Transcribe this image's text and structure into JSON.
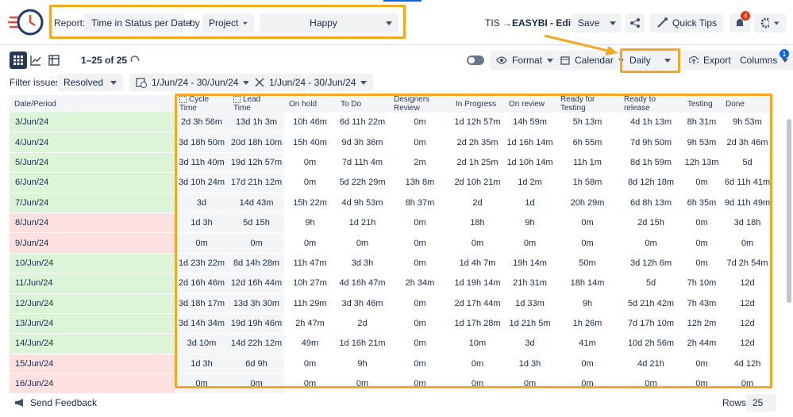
{
  "header": {
    "report_label": "Report:",
    "report_value": "Time in Status per Date",
    "by": "by",
    "group_value": "Project",
    "filter_value": "Happy",
    "title_prefix": "TIS → ",
    "title_main": "EASYBI - Edited",
    "save": "Save",
    "quick_tips": "Quick Tips",
    "notifications": "4"
  },
  "toolbar": {
    "range": "1–25 of 25",
    "format": "Format",
    "calendar": "Calendar",
    "period": "Daily",
    "export": "Export",
    "columns": "Columns",
    "columns_badge": "1"
  },
  "filters": {
    "label": "Filter issues:",
    "status": "Resolved",
    "date_range_1": "1/Jun/24 - 30/Jun/24",
    "date_range_2": "1/Jun/24 - 30/Jun/24"
  },
  "table": {
    "columns": [
      "Date/Period",
      "Cycle Time",
      "Lead Time",
      "On hold",
      "To Do",
      "Designers Review",
      "In Progress",
      "On review",
      "Ready for Testing",
      "Ready to release",
      "Testing",
      "Done"
    ],
    "rows": [
      {
        "date": "3/Jun/24",
        "color": "#dcf5d9",
        "values": [
          "2d 3h 56m",
          "13d 1h 3m",
          "10h 46m",
          "6d 11h 22m",
          "0m",
          "1d 12h 57m",
          "14h 59m",
          "5h 13m",
          "4d 1h 13m",
          "8h 31m",
          "9h 53m"
        ]
      },
      {
        "date": "4/Jun/24",
        "color": "#dcf5d9",
        "values": [
          "3d 18h 50m",
          "20d 18h 10m",
          "15h 40m",
          "9d 3h 36m",
          "0m",
          "2d 2h 35m",
          "1d 16h 14m",
          "6h 55m",
          "7d 9h 50m",
          "9h 53m",
          "2d 3h 46m"
        ]
      },
      {
        "date": "5/Jun/24",
        "color": "#dcf5d9",
        "values": [
          "3d 11h 40m",
          "19d 12h 57m",
          "0m",
          "7d 11h 4m",
          "2m",
          "2d 1h 25m",
          "1d 10h 14m",
          "11h 1m",
          "8d 1h 59m",
          "12h 13m",
          "5d"
        ]
      },
      {
        "date": "6/Jun/24",
        "color": "#dcf5d9",
        "values": [
          "3d 10h 24m",
          "17d 21h 12m",
          "0m",
          "5d 22h 29m",
          "13h 8m",
          "2d 10h 21m",
          "1d 2m",
          "1h 58m",
          "8d 12h 18m",
          "0m",
          "6d 11h 41m"
        ]
      },
      {
        "date": "7/Jun/24",
        "color": "#dcf5d9",
        "values": [
          "3d",
          "14d 43m",
          "15h 22m",
          "4d 9h 53m",
          "8h 37m",
          "2d",
          "1d",
          "20h 29m",
          "6d 8h 13m",
          "6h 35m",
          "9d 11h 49m"
        ]
      },
      {
        "date": "8/Jun/24",
        "color": "#fde1e1",
        "values": [
          "1d 3h",
          "5d 15h",
          "9h",
          "1d 21h",
          "0m",
          "18h",
          "9h",
          "0m",
          "2d 15h",
          "0m",
          "3d 18h"
        ]
      },
      {
        "date": "9/Jun/24",
        "color": "#fde1e1",
        "values": [
          "0m",
          "0m",
          "0m",
          "0m",
          "0m",
          "0m",
          "0m",
          "0m",
          "0m",
          "0m",
          "0m"
        ]
      },
      {
        "date": "10/Jun/24",
        "color": "#dcf5d9",
        "values": [
          "1d 23h 22m",
          "8d 14h 28m",
          "11h 47m",
          "3d 3h",
          "0m",
          "1d 4h 7m",
          "19h 14m",
          "50m",
          "3d 12h 6m",
          "0m",
          "7d 2h 54m"
        ]
      },
      {
        "date": "11/Jun/24",
        "color": "#dcf5d9",
        "values": [
          "2d 16h 46m",
          "12d 16h 44m",
          "10h 27m",
          "4d 16h 47m",
          "2h 34m",
          "1d 19h 14m",
          "21h 31m",
          "18h 14m",
          "5d",
          "7h 10m",
          "12d"
        ]
      },
      {
        "date": "12/Jun/24",
        "color": "#dcf5d9",
        "values": [
          "3d 18h 17m",
          "13d 3h 30m",
          "11h 29m",
          "3d 3h 46m",
          "0m",
          "2d 17h 44m",
          "1d 33m",
          "9h",
          "5d 21h 42m",
          "7h 43m",
          "12d"
        ]
      },
      {
        "date": "13/Jun/24",
        "color": "#dcf5d9",
        "values": [
          "3d 14h 34m",
          "19d 19h 46m",
          "2h 47m",
          "2d",
          "0m",
          "1d 17h 28m",
          "1d 21h 5m",
          "1h 26m",
          "7d 17h 10m",
          "12h 2m",
          "12d"
        ]
      },
      {
        "date": "14/Jun/24",
        "color": "#dcf5d9",
        "values": [
          "3d 10m",
          "14d 22h 12m",
          "49m",
          "1d 16h 21m",
          "0m",
          "10m",
          "3d",
          "41m",
          "10d 2h 56m",
          "2h 44m",
          "12d"
        ]
      },
      {
        "date": "15/Jun/24",
        "color": "#fde1e1",
        "values": [
          "1d 3h",
          "6d 9h",
          "0m",
          "9h",
          "0m",
          "0m",
          "1d 3h",
          "0m",
          "4d 21h",
          "0m",
          "4d 12h"
        ]
      },
      {
        "date": "16/Jun/24",
        "color": "#fde1e1",
        "values": [
          "0m",
          "0m",
          "0m",
          "0m",
          "0m",
          "0m",
          "0m",
          "0m",
          "0m",
          "0m",
          "0m"
        ]
      }
    ]
  },
  "footer": {
    "feedback": "Send Feedback",
    "rows_label": "Rows:",
    "rows_value": "25"
  }
}
